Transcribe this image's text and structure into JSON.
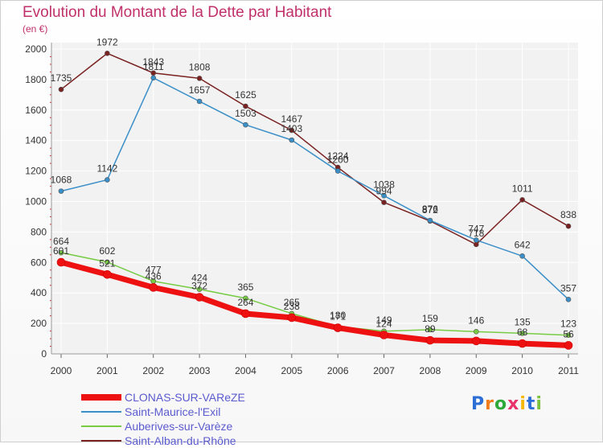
{
  "header": {
    "title": "Evolution du Montant de la Dette par Habitant",
    "subtitle": "(en €)"
  },
  "brand": {
    "letters": [
      "P",
      "r",
      "o",
      "x",
      "i",
      "t",
      "i"
    ],
    "colors": [
      "#2b6fd6",
      "#f07c1b",
      "#2eaa3a",
      "#e8326c",
      "#f5b800",
      "#2b6fd6",
      "#7bc23f"
    ]
  },
  "chart_data": {
    "type": "line",
    "title": "Evolution du Montant de la Dette par Habitant",
    "subtitle": "(en €)",
    "xlabel": "",
    "ylabel": "",
    "x": [
      "2000",
      "2001",
      "2002",
      "2003",
      "2004",
      "2005",
      "2006",
      "2007",
      "2008",
      "2009",
      "2010",
      "2011"
    ],
    "ylim": [
      0,
      2000
    ],
    "yticks": [
      0,
      200,
      400,
      600,
      800,
      1000,
      1200,
      1400,
      1600,
      1800,
      2000
    ],
    "grid": true,
    "legend_position": "bottom-left",
    "series": [
      {
        "name": "CLONAS-SUR-VAReZE",
        "color": "#ee1111",
        "values": [
          601,
          521,
          436,
          372,
          264,
          238,
          171,
          124,
          89,
          85,
          68,
          56
        ],
        "labels": [
          "601",
          "521",
          "436",
          "372",
          "264",
          "238",
          "171",
          "124",
          "89",
          "",
          "68",
          "56"
        ]
      },
      {
        "name": "Saint-Maurice-l'Exil",
        "color": "#3a8fc8",
        "values": [
          1068,
          1142,
          1811,
          1657,
          1503,
          1403,
          1200,
          1038,
          876,
          747,
          642,
          357
        ],
        "labels": [
          "1068",
          "1142",
          "1811",
          "1657",
          "1503",
          "1403",
          "1200",
          "1038",
          "876",
          "747",
          "642",
          "357"
        ]
      },
      {
        "name": "Auberives-sur-Varèze",
        "color": "#77cc44",
        "values": [
          664,
          602,
          477,
          424,
          365,
          265,
          180,
          149,
          159,
          146,
          135,
          123
        ],
        "labels": [
          "664",
          "602",
          "477",
          "424",
          "365",
          "265",
          "180",
          "149",
          "159",
          "146",
          "135",
          "123"
        ]
      },
      {
        "name": "Saint-Alban-du-Rhône",
        "color": "#7a2222",
        "values": [
          1735,
          1972,
          1843,
          1808,
          1625,
          1467,
          1224,
          994,
          872,
          718,
          1011,
          838
        ],
        "labels": [
          "1735",
          "1972",
          "1843",
          "1808",
          "1625",
          "1467",
          "1224",
          "994",
          "872",
          "718",
          "1011",
          "838"
        ]
      }
    ]
  }
}
